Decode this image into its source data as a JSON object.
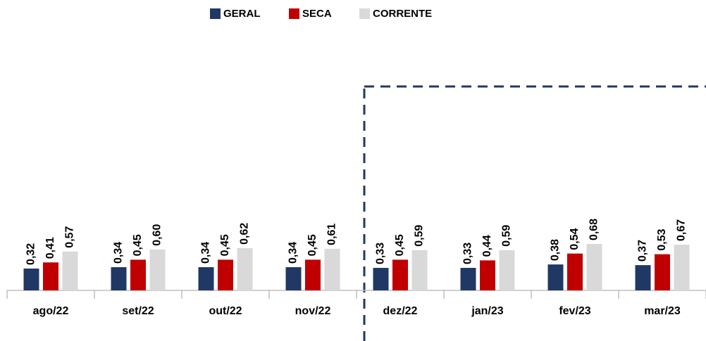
{
  "chart_data": {
    "type": "bar",
    "categories": [
      "ago/22",
      "set/22",
      "out/22",
      "nov/22",
      "dez/22",
      "jan/23",
      "fev/23",
      "mar/23"
    ],
    "series": [
      {
        "name": "GERAL",
        "color": "#203864",
        "values": [
          0.32,
          0.34,
          0.34,
          0.34,
          0.33,
          0.33,
          0.38,
          0.37
        ],
        "value_labels": [
          "0,32",
          "0,34",
          "0,34",
          "0,34",
          "0,33",
          "0,33",
          "0,38",
          "0,37"
        ]
      },
      {
        "name": "SECA",
        "color": "#c00000",
        "values": [
          0.41,
          0.45,
          0.45,
          0.45,
          0.45,
          0.44,
          0.54,
          0.53
        ],
        "value_labels": [
          "0,41",
          "0,45",
          "0,45",
          "0,45",
          "0,45",
          "0,44",
          "0,54",
          "0,53"
        ]
      },
      {
        "name": "CORRENTE",
        "color": "#d9d9d9",
        "values": [
          0.57,
          0.6,
          0.62,
          0.61,
          0.59,
          0.59,
          0.68,
          0.67
        ],
        "value_labels": [
          "0,57",
          "0,60",
          "0,62",
          "0,61",
          "0,59",
          "0,59",
          "0,68",
          "0,67"
        ]
      }
    ],
    "legend": "top"
  }
}
